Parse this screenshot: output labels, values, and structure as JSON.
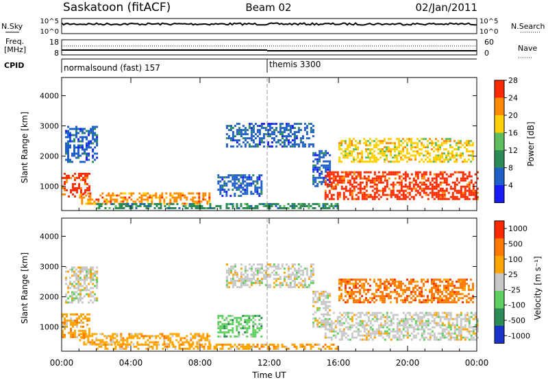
{
  "header": {
    "title": "Saskatoon (fitACF)",
    "beam": "Beam 02",
    "date": "02/Jan/2011"
  },
  "noise_panel": {
    "left_label": "N.Sky",
    "left_ticks": [
      "10^5",
      "10^0"
    ],
    "right_ticks": [
      "10^5",
      "10^0"
    ],
    "right_label": "N.Search"
  },
  "freq_panel": {
    "left_label_1": "Freq.",
    "left_label_2": "[MHz]",
    "left_ticks": [
      "18",
      "8"
    ],
    "right_ticks": [
      "60",
      "0"
    ],
    "right_label": "Nave"
  },
  "cpid_panel": {
    "label": "CPID",
    "modes": [
      {
        "name": "normalsound (fast) 157",
        "start_hour": 0
      },
      {
        "name": "themis 3300",
        "start_hour": 12
      }
    ]
  },
  "chart_data": [
    {
      "type": "heatmap",
      "name": "power",
      "ylabel": "Slant Range [km]",
      "yticks": [
        "1000",
        "2000",
        "3000",
        "4000"
      ],
      "ylim": [
        200,
        4600
      ],
      "xlim": [
        0,
        24
      ],
      "colorbar_label": "Power [dB]",
      "colorbar_ticks": [
        "4",
        "8",
        "12",
        "16",
        "20",
        "24",
        "28"
      ],
      "colorbar_colors": [
        "#1a1aff",
        "#1e5fc8",
        "#2e8b57",
        "#5fbf5f",
        "#ffd000",
        "#ff8c00",
        "#ff2a00"
      ],
      "echo_regions": [
        {
          "t0": 0.0,
          "t1": 1.6,
          "r0": 650,
          "r1": 1450,
          "level": 6
        },
        {
          "t0": 1.0,
          "t1": 8.5,
          "r0": 400,
          "r1": 800,
          "level": 5
        },
        {
          "t0": 0.2,
          "t1": 2.0,
          "r0": 1800,
          "r1": 3000,
          "level": 1
        },
        {
          "t0": 9.5,
          "t1": 14.5,
          "r0": 2300,
          "r1": 3100,
          "level": 1
        },
        {
          "t0": 14.5,
          "t1": 15.5,
          "r0": 1000,
          "r1": 2200,
          "level": 1
        },
        {
          "t0": 15.2,
          "t1": 24.0,
          "r0": 600,
          "r1": 1500,
          "level": 6
        },
        {
          "t0": 16.0,
          "t1": 23.8,
          "r0": 1800,
          "r1": 2600,
          "level": 4
        },
        {
          "t0": 9.0,
          "t1": 11.5,
          "r0": 700,
          "r1": 1400,
          "level": 1
        },
        {
          "t0": 2.0,
          "t1": 16.0,
          "r0": 250,
          "r1": 450,
          "level": 2
        }
      ]
    },
    {
      "type": "heatmap",
      "name": "velocity",
      "ylabel": "Slant Range [km]",
      "yticks": [
        "1000",
        "2000",
        "3000",
        "4000"
      ],
      "ylim": [
        200,
        4600
      ],
      "xlim": [
        0,
        24
      ],
      "xlabel": "Time UT",
      "xticks": [
        "00:00",
        "04:00",
        "08:00",
        "12:00",
        "16:00",
        "20:00",
        "00:00"
      ],
      "colorbar_label": "Velocity [m s⁻¹]",
      "colorbar_ticks": [
        "1000",
        "500",
        "100",
        "25",
        "-25",
        "-100",
        "-500",
        "-1000"
      ],
      "colorbar_colors": [
        "#1a33c8",
        "#2e8b57",
        "#5fd05f",
        "#c8c8c8",
        "#ffa500",
        "#ff7800",
        "#ff2a00"
      ],
      "echo_regions": [
        {
          "t0": 0.0,
          "t1": 1.6,
          "r0": 650,
          "r1": 1450,
          "level": 4
        },
        {
          "t0": 1.0,
          "t1": 8.5,
          "r0": 400,
          "r1": 800,
          "level": 4
        },
        {
          "t0": 0.2,
          "t1": 2.0,
          "r0": 1800,
          "r1": 3000,
          "level": 3
        },
        {
          "t0": 9.5,
          "t1": 14.5,
          "r0": 2300,
          "r1": 3100,
          "level": 3
        },
        {
          "t0": 14.5,
          "t1": 15.5,
          "r0": 1000,
          "r1": 2200,
          "level": 3
        },
        {
          "t0": 15.2,
          "t1": 24.0,
          "r0": 600,
          "r1": 1500,
          "level": 3
        },
        {
          "t0": 16.0,
          "t1": 23.8,
          "r0": 1800,
          "r1": 2600,
          "level": 5
        },
        {
          "t0": 9.0,
          "t1": 11.5,
          "r0": 700,
          "r1": 1400,
          "level": 2
        },
        {
          "t0": 2.0,
          "t1": 16.0,
          "r0": 250,
          "r1": 450,
          "level": 4
        }
      ]
    }
  ]
}
